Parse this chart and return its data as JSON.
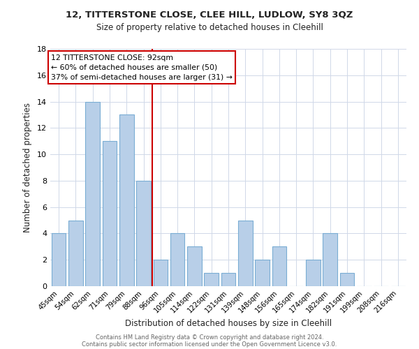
{
  "title1": "12, TITTERSTONE CLOSE, CLEE HILL, LUDLOW, SY8 3QZ",
  "title2": "Size of property relative to detached houses in Cleehill",
  "xlabel": "Distribution of detached houses by size in Cleehill",
  "ylabel": "Number of detached properties",
  "categories": [
    "45sqm",
    "54sqm",
    "62sqm",
    "71sqm",
    "79sqm",
    "88sqm",
    "96sqm",
    "105sqm",
    "114sqm",
    "122sqm",
    "131sqm",
    "139sqm",
    "148sqm",
    "156sqm",
    "165sqm",
    "174sqm",
    "182sqm",
    "191sqm",
    "199sqm",
    "208sqm",
    "216sqm"
  ],
  "values": [
    4,
    5,
    14,
    11,
    13,
    8,
    2,
    4,
    3,
    1,
    1,
    5,
    2,
    3,
    0,
    2,
    4,
    1,
    0,
    0,
    0
  ],
  "bar_color": "#b8cfe8",
  "bar_edge_color": "#7aadd4",
  "reference_line_x": 5.5,
  "reference_line_color": "#cc0000",
  "annotation_line1": "12 TITTERSTONE CLOSE: 92sqm",
  "annotation_line2": "← 60% of detached houses are smaller (50)",
  "annotation_line3": "37% of semi-detached houses are larger (31) →",
  "annotation_box_edge_color": "#cc0000",
  "annotation_box_face_color": "#ffffff",
  "ylim": [
    0,
    18
  ],
  "yticks": [
    0,
    2,
    4,
    6,
    8,
    10,
    12,
    14,
    16,
    18
  ],
  "footer1": "Contains HM Land Registry data © Crown copyright and database right 2024.",
  "footer2": "Contains public sector information licensed under the Open Government Licence v3.0.",
  "background_color": "#ffffff",
  "grid_color": "#d0d8e8"
}
